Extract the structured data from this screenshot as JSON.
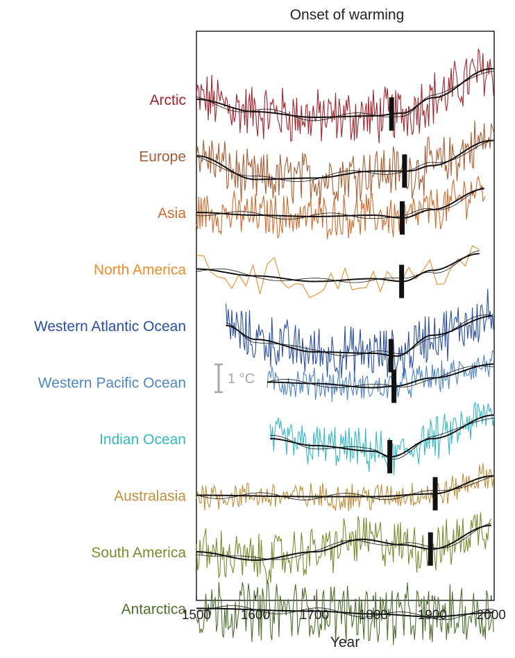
{
  "chart_data": {
    "type": "line",
    "title": "Onset of warming",
    "xlabel": "Year",
    "ylabel": "",
    "xlim": [
      1500,
      2005
    ],
    "xticks": [
      1500,
      1600,
      1700,
      1800,
      1900,
      2000
    ],
    "scale_bar": {
      "label": "1 °C",
      "value_c": 1
    },
    "series": [
      {
        "name": "Arctic",
        "color": "#a3232c",
        "start": 1500,
        "end": 2005,
        "onset": 1831,
        "amp": 0.9,
        "smooth": [
          [
            1500,
            0.0
          ],
          [
            1600,
            -0.45
          ],
          [
            1700,
            -0.65
          ],
          [
            1800,
            -0.6
          ],
          [
            1850,
            -0.5
          ],
          [
            1900,
            0.05
          ],
          [
            2000,
            1.1
          ]
        ]
      },
      {
        "name": "Europe",
        "color": "#a95c33",
        "start": 1500,
        "end": 2005,
        "onset": 1853,
        "amp": 0.85,
        "smooth": [
          [
            1500,
            0.0
          ],
          [
            1600,
            -0.85
          ],
          [
            1700,
            -0.8
          ],
          [
            1800,
            -0.55
          ],
          [
            1860,
            -0.55
          ],
          [
            1900,
            -0.35
          ],
          [
            2000,
            0.55
          ]
        ]
      },
      {
        "name": "Asia",
        "color": "#cf6a2c",
        "start": 1500,
        "end": 1990,
        "onset": 1849,
        "amp": 0.7,
        "smooth": [
          [
            1500,
            0.0
          ],
          [
            1600,
            -0.1
          ],
          [
            1700,
            -0.15
          ],
          [
            1800,
            -0.1
          ],
          [
            1850,
            -0.2
          ],
          [
            1900,
            0.1
          ],
          [
            1990,
            0.85
          ]
        ]
      },
      {
        "name": "North America",
        "color": "#ec8b2b",
        "start": 1500,
        "end": 1980,
        "onset": 1848,
        "amp": 0.6,
        "smooth": [
          [
            1500,
            0.0
          ],
          [
            1600,
            -0.25
          ],
          [
            1700,
            -0.45
          ],
          [
            1800,
            -0.35
          ],
          [
            1850,
            -0.45
          ],
          [
            1900,
            -0.05
          ],
          [
            1980,
            0.55
          ]
        ]
      },
      {
        "name": "Western Atlantic Ocean",
        "color": "#2b4fa0",
        "start": 1550,
        "end": 2005,
        "onset": 1830,
        "amp": 0.85,
        "smooth": [
          [
            1550,
            0.0
          ],
          [
            1600,
            -0.5
          ],
          [
            1700,
            -0.95
          ],
          [
            1800,
            -1.0
          ],
          [
            1840,
            -1.1
          ],
          [
            1900,
            -0.35
          ],
          [
            2005,
            0.35
          ]
        ]
      },
      {
        "name": "Western Pacific Ocean",
        "color": "#4f86c6",
        "start": 1620,
        "end": 2005,
        "onset": 1835,
        "amp": 0.5,
        "smooth": [
          [
            1620,
            0.0
          ],
          [
            1700,
            -0.05
          ],
          [
            1800,
            -0.2
          ],
          [
            1835,
            -0.15
          ],
          [
            1900,
            0.15
          ],
          [
            2005,
            0.65
          ]
        ]
      },
      {
        "name": "Indian Ocean",
        "color": "#35b8c4",
        "start": 1625,
        "end": 2005,
        "onset": 1828,
        "amp": 0.7,
        "smooth": [
          [
            1625,
            0.0
          ],
          [
            1700,
            -0.25
          ],
          [
            1800,
            -0.45
          ],
          [
            1830,
            -0.65
          ],
          [
            1900,
            0.0
          ],
          [
            2005,
            0.85
          ]
        ]
      },
      {
        "name": "Australasia",
        "color": "#c08e3b",
        "start": 1500,
        "end": 2005,
        "onset": 1905,
        "amp": 0.45,
        "smooth": [
          [
            1500,
            0.0
          ],
          [
            1700,
            -0.05
          ],
          [
            1800,
            -0.05
          ],
          [
            1900,
            0.05
          ],
          [
            2005,
            0.7
          ]
        ]
      },
      {
        "name": "South America",
        "color": "#7b8a2f",
        "start": 1500,
        "end": 2000,
        "onset": 1897,
        "amp": 0.8,
        "smooth": [
          [
            1500,
            0.0
          ],
          [
            1600,
            -0.3
          ],
          [
            1700,
            0.0
          ],
          [
            1780,
            0.45
          ],
          [
            1850,
            0.25
          ],
          [
            1900,
            0.1
          ],
          [
            2000,
            0.95
          ]
        ]
      },
      {
        "name": "Antarctica",
        "color": "#4e6e2e",
        "start": 1500,
        "end": 2005,
        "onset": null,
        "amp": 0.95,
        "smooth": [
          [
            1500,
            0.0
          ],
          [
            1700,
            -0.1
          ],
          [
            1800,
            -0.2
          ],
          [
            1900,
            -0.3
          ],
          [
            2005,
            -0.15
          ]
        ]
      }
    ]
  }
}
